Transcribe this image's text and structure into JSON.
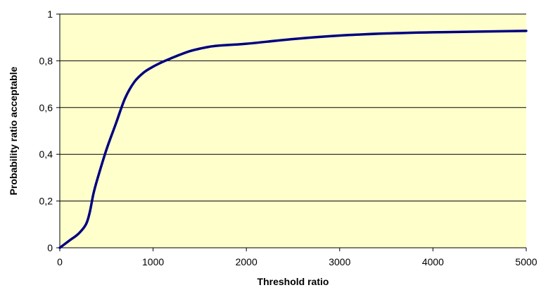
{
  "chart_data": {
    "type": "line",
    "title": "",
    "xlabel": "Threshold ratio",
    "ylabel": "Probability ratio acceptable",
    "xlim": [
      0,
      5000
    ],
    "ylim": [
      0,
      1
    ],
    "x_ticks": [
      0,
      1000,
      2000,
      3000,
      4000,
      5000
    ],
    "x_tick_labels": [
      "0",
      "1000",
      "2000",
      "3000",
      "4000",
      "5000"
    ],
    "y_ticks": [
      0,
      0.2,
      0.4,
      0.6,
      0.8,
      1
    ],
    "y_tick_labels": [
      "0",
      "0,2",
      "0,4",
      "0,6",
      "0,8",
      "1"
    ],
    "grid": "horizontal",
    "legend": "none",
    "colors": {
      "plot_background": "#FFFFCC",
      "line": "#000080",
      "grid": "#000000"
    },
    "series": [
      {
        "x": [
          0,
          100,
          200,
          280,
          320,
          360,
          400,
          500,
          600,
          700,
          800,
          900,
          1000,
          1100,
          1200,
          1300,
          1400,
          1500,
          1600,
          1700,
          2000,
          2500,
          3000,
          3500,
          4000,
          4500,
          5000
        ],
        "y": [
          0,
          0.03,
          0.06,
          0.1,
          0.15,
          0.23,
          0.29,
          0.42,
          0.53,
          0.64,
          0.71,
          0.75,
          0.775,
          0.795,
          0.812,
          0.828,
          0.842,
          0.852,
          0.86,
          0.865,
          0.873,
          0.893,
          0.908,
          0.917,
          0.922,
          0.925,
          0.928
        ]
      }
    ]
  }
}
